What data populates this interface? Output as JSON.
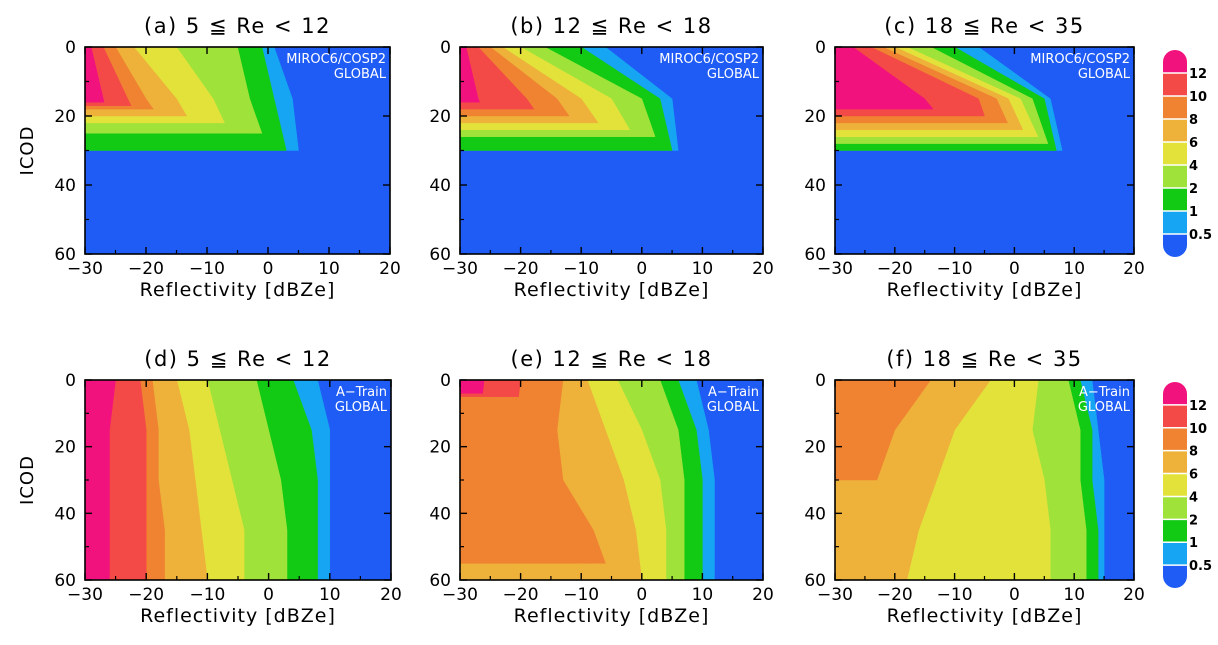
{
  "figure": {
    "xlabel": "Reflectivity [dBZe]",
    "ylabel": "ICOD"
  },
  "colorbar": {
    "levels": [
      "0.5",
      "1",
      "2",
      "4",
      "6",
      "8",
      "10",
      "12"
    ],
    "colors": [
      "#1f5bf5",
      "#16a5f2",
      "#12c914",
      "#9fe33a",
      "#e3e23b",
      "#eeb23a",
      "#ef8331",
      "#f44a47",
      "#f2127d"
    ]
  },
  "chart_data": [
    {
      "type": "heatmap",
      "title": "(a) 5 ≦ Re < 12",
      "annotation": [
        "MIROC6/COSP2",
        "GLOBAL"
      ],
      "xlabel": "Reflectivity [dBZe]",
      "ylabel": "ICOD",
      "xlim": [
        -30,
        20
      ],
      "ylim": [
        60,
        0
      ],
      "xticks": [
        "−30",
        "−20",
        "−10",
        "0",
        "10",
        "20"
      ],
      "yticks": [
        "0",
        "20",
        "40",
        "60"
      ],
      "value_levels": [
        0.5,
        1,
        2,
        4,
        6,
        8,
        10,
        12
      ],
      "icod_rows": [
        0,
        15,
        30,
        45,
        60
      ],
      "max_icod": [
        [
          0,
          30
        ],
        [
          2,
          30
        ],
        [
          4,
          25
        ],
        [
          6,
          22
        ],
        [
          8,
          20
        ],
        [
          10,
          18
        ],
        [
          12,
          17
        ],
        [
          14,
          16
        ]
      ],
      "boundaries": [
        [
          1,
          4,
          5,
          5,
          5
        ],
        [
          -1,
          1,
          3,
          4,
          4
        ],
        [
          -5,
          -3,
          0,
          1,
          2
        ],
        [
          -15,
          -9,
          -5,
          -2,
          -1
        ],
        [
          -22,
          -15,
          -10,
          -6,
          -3
        ],
        [
          -25,
          -20,
          -14,
          -8,
          -4
        ],
        [
          -27,
          -23,
          -19,
          -11,
          -6
        ],
        [
          -29,
          -27,
          -25,
          -18,
          -10
        ]
      ]
    },
    {
      "type": "heatmap",
      "title": "(b) 12 ≦ Re < 18",
      "annotation": [
        "MIROC6/COSP2",
        "GLOBAL"
      ],
      "xlabel": "Reflectivity [dBZe]",
      "ylabel": "ICOD",
      "xlim": [
        -30,
        20
      ],
      "ylim": [
        60,
        0
      ],
      "xticks": [
        "−30",
        "−20",
        "−10",
        "0",
        "10",
        "20"
      ],
      "yticks": [
        "0",
        "20",
        "40",
        "60"
      ],
      "value_levels": [
        0.5,
        1,
        2,
        4,
        6,
        8,
        10,
        12
      ],
      "icod_rows": [
        0,
        15,
        30,
        45,
        60
      ],
      "max_icod": [
        [
          0,
          30
        ],
        [
          2,
          30
        ],
        [
          4,
          26
        ],
        [
          6,
          24
        ],
        [
          8,
          22
        ],
        [
          10,
          20
        ],
        [
          12,
          18
        ],
        [
          14,
          16
        ]
      ],
      "boundaries": [
        [
          -6,
          5,
          6,
          6,
          7
        ],
        [
          -10,
          3,
          5,
          5,
          6
        ],
        [
          -16,
          0,
          3,
          3,
          4
        ],
        [
          -20,
          -5,
          0,
          1,
          2
        ],
        [
          -23,
          -10,
          -4,
          -2,
          -1
        ],
        [
          -25,
          -14,
          -8,
          -6,
          -5
        ],
        [
          -27,
          -19,
          -13,
          -11,
          -10
        ],
        [
          -29,
          -27,
          -23,
          -20,
          -18
        ]
      ]
    },
    {
      "type": "heatmap",
      "title": "(c) 18 ≦ Re < 35",
      "annotation": [
        "MIROC6/COSP2",
        "GLOBAL"
      ],
      "xlabel": "Reflectivity [dBZe]",
      "ylabel": "ICOD",
      "xlim": [
        -30,
        20
      ],
      "ylim": [
        60,
        0
      ],
      "xticks": [
        "−30",
        "−20",
        "−10",
        "0",
        "10",
        "20"
      ],
      "yticks": [
        "0",
        "20",
        "40",
        "60"
      ],
      "value_levels": [
        0.5,
        1,
        2,
        4,
        6,
        8,
        10,
        12
      ],
      "icod_rows": [
        0,
        15,
        30,
        45,
        60
      ],
      "max_icod": [
        [
          0,
          30
        ],
        [
          2,
          30
        ],
        [
          4,
          28
        ],
        [
          6,
          26
        ],
        [
          8,
          24
        ],
        [
          10,
          22
        ],
        [
          12,
          20
        ],
        [
          14,
          18
        ]
      ],
      "boundaries": [
        [
          -6,
          6,
          8,
          8,
          8
        ],
        [
          -10,
          5,
          7,
          7,
          7
        ],
        [
          -14,
          3,
          6,
          6,
          6
        ],
        [
          -18,
          1,
          5,
          5,
          5
        ],
        [
          -20,
          -1,
          3,
          4,
          4
        ],
        [
          -22,
          -3,
          1,
          2,
          2
        ],
        [
          -24,
          -6,
          -3,
          -2,
          -2
        ],
        [
          -27,
          -15,
          -8,
          -6,
          -6
        ]
      ]
    },
    {
      "type": "heatmap",
      "title": "(d) 5 ≦ Re < 12",
      "annotation": [
        "A−Train",
        "GLOBAL"
      ],
      "xlabel": "Reflectivity [dBZe]",
      "ylabel": "ICOD",
      "xlim": [
        -30,
        20
      ],
      "ylim": [
        60,
        0
      ],
      "xticks": [
        "−30",
        "−20",
        "−10",
        "0",
        "10",
        "20"
      ],
      "yticks": [
        "0",
        "20",
        "40",
        "60"
      ],
      "value_levels": [
        0.5,
        1,
        2,
        4,
        6,
        8,
        10,
        12
      ],
      "icod_rows": [
        0,
        15,
        30,
        45,
        60
      ],
      "max_icod": [
        [
          0,
          60
        ],
        [
          2,
          60
        ],
        [
          4,
          60
        ],
        [
          6,
          60
        ],
        [
          8,
          60
        ],
        [
          10,
          60
        ],
        [
          12,
          60
        ],
        [
          14,
          60
        ]
      ],
      "boundaries": [
        [
          8,
          10,
          10,
          10,
          10
        ],
        [
          4,
          7,
          8,
          8,
          8
        ],
        [
          -2,
          0,
          2,
          3,
          3
        ],
        [
          -10,
          -8,
          -6,
          -4,
          -4
        ],
        [
          -15,
          -13,
          -12,
          -11,
          -10
        ],
        [
          -19,
          -18,
          -18,
          -17,
          -17
        ],
        [
          -21,
          -20,
          -20,
          -20,
          -20
        ],
        [
          -25,
          -26,
          -26,
          -26,
          -26
        ]
      ]
    },
    {
      "type": "heatmap",
      "title": "(e) 12 ≦ Re < 18",
      "annotation": [
        "A−Train",
        "GLOBAL"
      ],
      "xlabel": "Reflectivity [dBZe]",
      "ylabel": "ICOD",
      "xlim": [
        -30,
        20
      ],
      "ylim": [
        60,
        0
      ],
      "xticks": [
        "−30",
        "−20",
        "−10",
        "0",
        "10",
        "20"
      ],
      "yticks": [
        "0",
        "20",
        "40",
        "60"
      ],
      "value_levels": [
        0.5,
        1,
        2,
        4,
        6,
        8,
        10,
        12
      ],
      "icod_rows": [
        0,
        15,
        30,
        45,
        60
      ],
      "max_icod": [
        [
          0,
          60
        ],
        [
          2,
          60
        ],
        [
          4,
          60
        ],
        [
          6,
          60
        ],
        [
          8,
          60
        ],
        [
          10,
          55
        ],
        [
          12,
          5
        ],
        [
          14,
          4
        ]
      ],
      "boundaries": [
        [
          9,
          11,
          12,
          12,
          12
        ],
        [
          6,
          9,
          10,
          10,
          10
        ],
        [
          3,
          6,
          7,
          7,
          7
        ],
        [
          -4,
          0,
          3,
          4,
          4
        ],
        [
          -9,
          -6,
          -3,
          -1,
          0
        ],
        [
          -13,
          -14,
          -13,
          -8,
          -5
        ],
        [
          -20,
          -21,
          -24,
          -26,
          -15
        ],
        [
          -26,
          -27,
          -28,
          -28,
          -28
        ]
      ]
    },
    {
      "type": "heatmap",
      "title": "(f) 18 ≦ Re < 35",
      "annotation": [
        "A−Train",
        "GLOBAL"
      ],
      "xlabel": "Reflectivity [dBZe]",
      "ylabel": "ICOD",
      "xlim": [
        -30,
        20
      ],
      "ylim": [
        60,
        0
      ],
      "xticks": [
        "−30",
        "−20",
        "−10",
        "0",
        "10",
        "20"
      ],
      "yticks": [
        "0",
        "20",
        "40",
        "60"
      ],
      "value_levels": [
        0.5,
        1,
        2,
        4,
        6,
        8,
        10,
        12
      ],
      "icod_rows": [
        0,
        15,
        30,
        45,
        60
      ],
      "max_icod": [
        [
          0,
          60
        ],
        [
          2,
          60
        ],
        [
          4,
          60
        ],
        [
          6,
          60
        ],
        [
          8,
          60
        ],
        [
          10,
          30
        ],
        [
          12,
          0
        ],
        [
          14,
          0
        ]
      ],
      "boundaries": [
        [
          13,
          14,
          15,
          15,
          15
        ],
        [
          11,
          13,
          13,
          14,
          14
        ],
        [
          9,
          11,
          11,
          12,
          12
        ],
        [
          4,
          3,
          5,
          6,
          6
        ],
        [
          -4,
          -10,
          -13,
          -16,
          -18
        ],
        [
          -14,
          -20,
          -23,
          -26,
          -27
        ],
        [
          -24,
          -27,
          -28,
          -28,
          -28
        ],
        [
          -27,
          -28,
          -29,
          -29,
          -29
        ]
      ]
    }
  ]
}
